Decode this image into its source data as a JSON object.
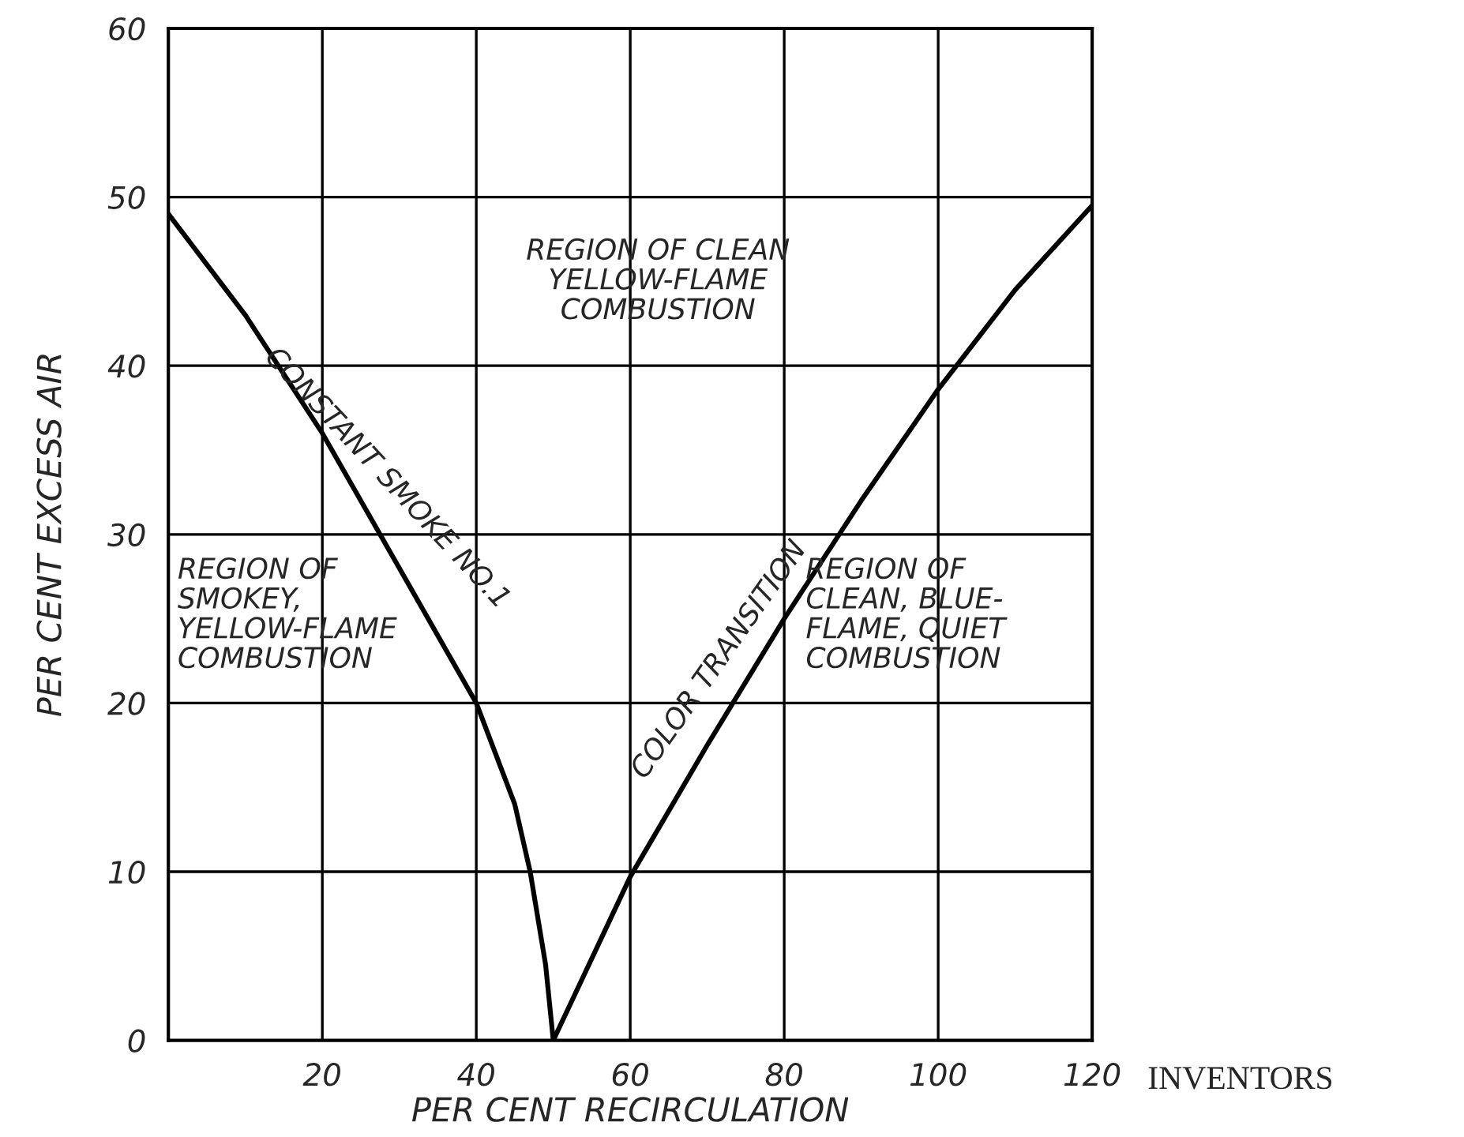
{
  "chart_data": {
    "type": "line",
    "xlabel": "PER CENT RECIRCULATION",
    "ylabel": "PER CENT EXCESS AIR",
    "series": [
      {
        "name": "CONSTANT SMOKE NO.1",
        "color": "#000000",
        "x": [
          0,
          10,
          20,
          30,
          40,
          45,
          47,
          49,
          50
        ],
        "values": [
          49,
          43,
          36,
          28,
          20,
          14,
          10,
          4.5,
          0
        ]
      },
      {
        "name": "COLOR TRANSITION",
        "color": "#000000",
        "x": [
          50,
          60,
          70,
          80,
          90,
          100,
          110,
          120
        ],
        "values": [
          0,
          9.7,
          17.5,
          25,
          32,
          38.6,
          44.5,
          49.5
        ]
      }
    ],
    "xlim": [
      0,
      120
    ],
    "xticks": [
      {
        "value": 0,
        "label": null
      },
      20,
      40,
      60,
      80,
      100,
      120
    ],
    "ylim": [
      0,
      60
    ],
    "yticks": [
      0,
      10,
      20,
      30,
      40,
      50,
      60
    ],
    "grid": true,
    "marker": "none",
    "line_style": "solid",
    "annotations": [
      "REGION OF CLEAN\nYELLOW-FLAME\nCOMBUSTION",
      "REGION OF\nSMOKEY,\nYELLOW-FLAME\nCOMBUSTION",
      "REGION OF\nCLEAN, BLUE-\nFLAME, QUIET\nCOMBUSTION",
      "INVENTORS"
    ]
  }
}
